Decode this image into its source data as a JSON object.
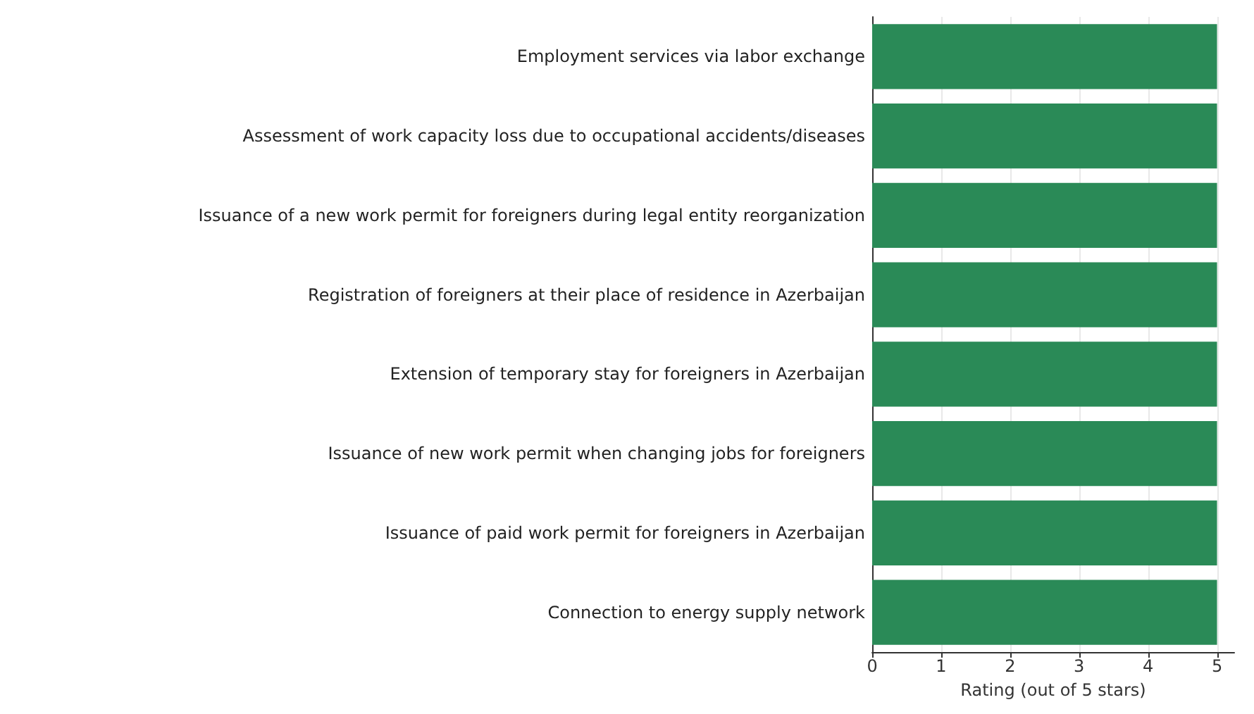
{
  "chart_data": {
    "type": "bar",
    "orientation": "horizontal",
    "xlabel": "Rating (out of 5 stars)",
    "categories": [
      "Employment services via labor exchange",
      "Assessment of work capacity loss due to occupational accidents/diseases",
      "Issuance of a new work permit for foreigners during legal entity reorganization",
      "Registration of foreigners at their place of residence in Azerbaijan",
      "Extension of temporary stay for foreigners in Azerbaijan",
      "Issuance of new work permit when changing jobs for foreigners",
      "Issuance of paid work permit for foreigners in Azerbaijan",
      "Connection to energy supply network"
    ],
    "values": [
      5,
      5,
      5,
      5,
      5,
      5,
      5,
      5
    ],
    "color": "#2a8a57",
    "xlim": [
      0,
      5.25
    ],
    "xticks": [
      0,
      1,
      2,
      3,
      4,
      5
    ],
    "grid": "x"
  }
}
